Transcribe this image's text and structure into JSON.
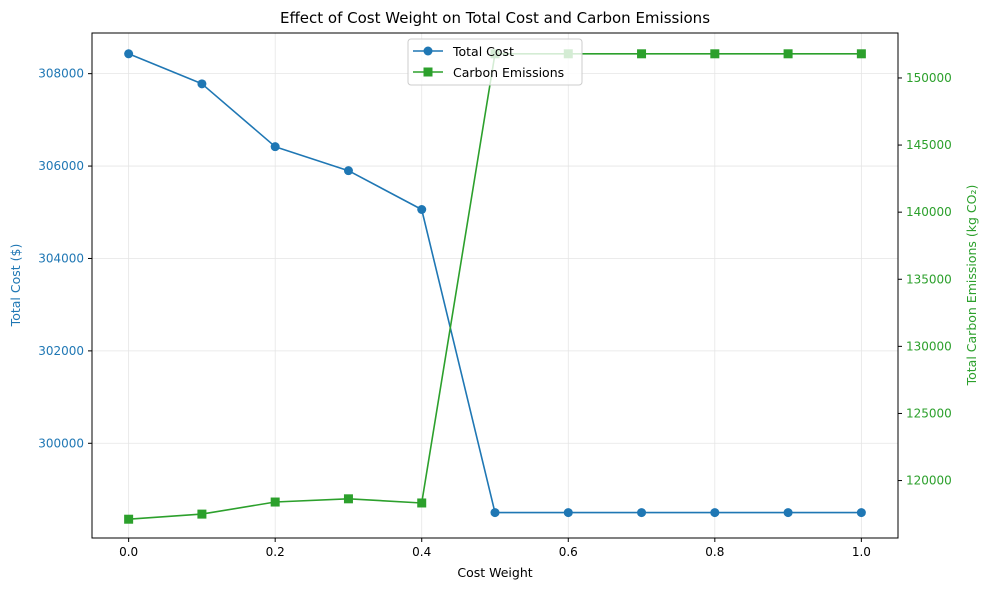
{
  "chart_data": {
    "type": "line",
    "title": "Effect of Cost Weight on Total Cost and Carbon Emissions",
    "xlabel": "Cost Weight",
    "ylabel_left": "Total Cost ($)",
    "ylabel_right": "Total Carbon Emissions (kg CO₂)",
    "x": [
      0.0,
      0.1,
      0.2,
      0.3,
      0.4,
      0.5,
      0.6,
      0.7,
      0.8,
      0.9,
      1.0
    ],
    "xlim": [
      -0.05,
      1.05
    ],
    "x_ticks": [
      0.0,
      0.2,
      0.4,
      0.6,
      0.8,
      1.0
    ],
    "x_tick_labels": [
      "0.0",
      "0.2",
      "0.4",
      "0.6",
      "0.8",
      "1.0"
    ],
    "ylim_left": [
      297950,
      308880
    ],
    "y_ticks_left": [
      300000,
      302000,
      304000,
      306000,
      308000
    ],
    "y_tick_labels_left": [
      "300000",
      "302000",
      "304000",
      "306000",
      "308000"
    ],
    "ylim_right": [
      115720,
      153350
    ],
    "y_ticks_right": [
      120000,
      125000,
      130000,
      135000,
      140000,
      145000,
      150000
    ],
    "y_tick_labels_right": [
      "120000",
      "125000",
      "130000",
      "135000",
      "140000",
      "145000",
      "150000"
    ],
    "grid": true,
    "legend_position": "upper-center",
    "series": [
      {
        "name": "Total Cost",
        "axis": "left",
        "marker": "circle",
        "color": "#1f77b4",
        "values": [
          308430,
          307780,
          306420,
          305900,
          305060,
          298500,
          298500,
          298500,
          298500,
          298500,
          298500
        ]
      },
      {
        "name": "Carbon Emissions",
        "axis": "right",
        "marker": "square",
        "color": "#2ca02c",
        "values": [
          117120,
          117500,
          118400,
          118640,
          118330,
          151800,
          151800,
          151800,
          151800,
          151800,
          151800
        ]
      }
    ]
  }
}
